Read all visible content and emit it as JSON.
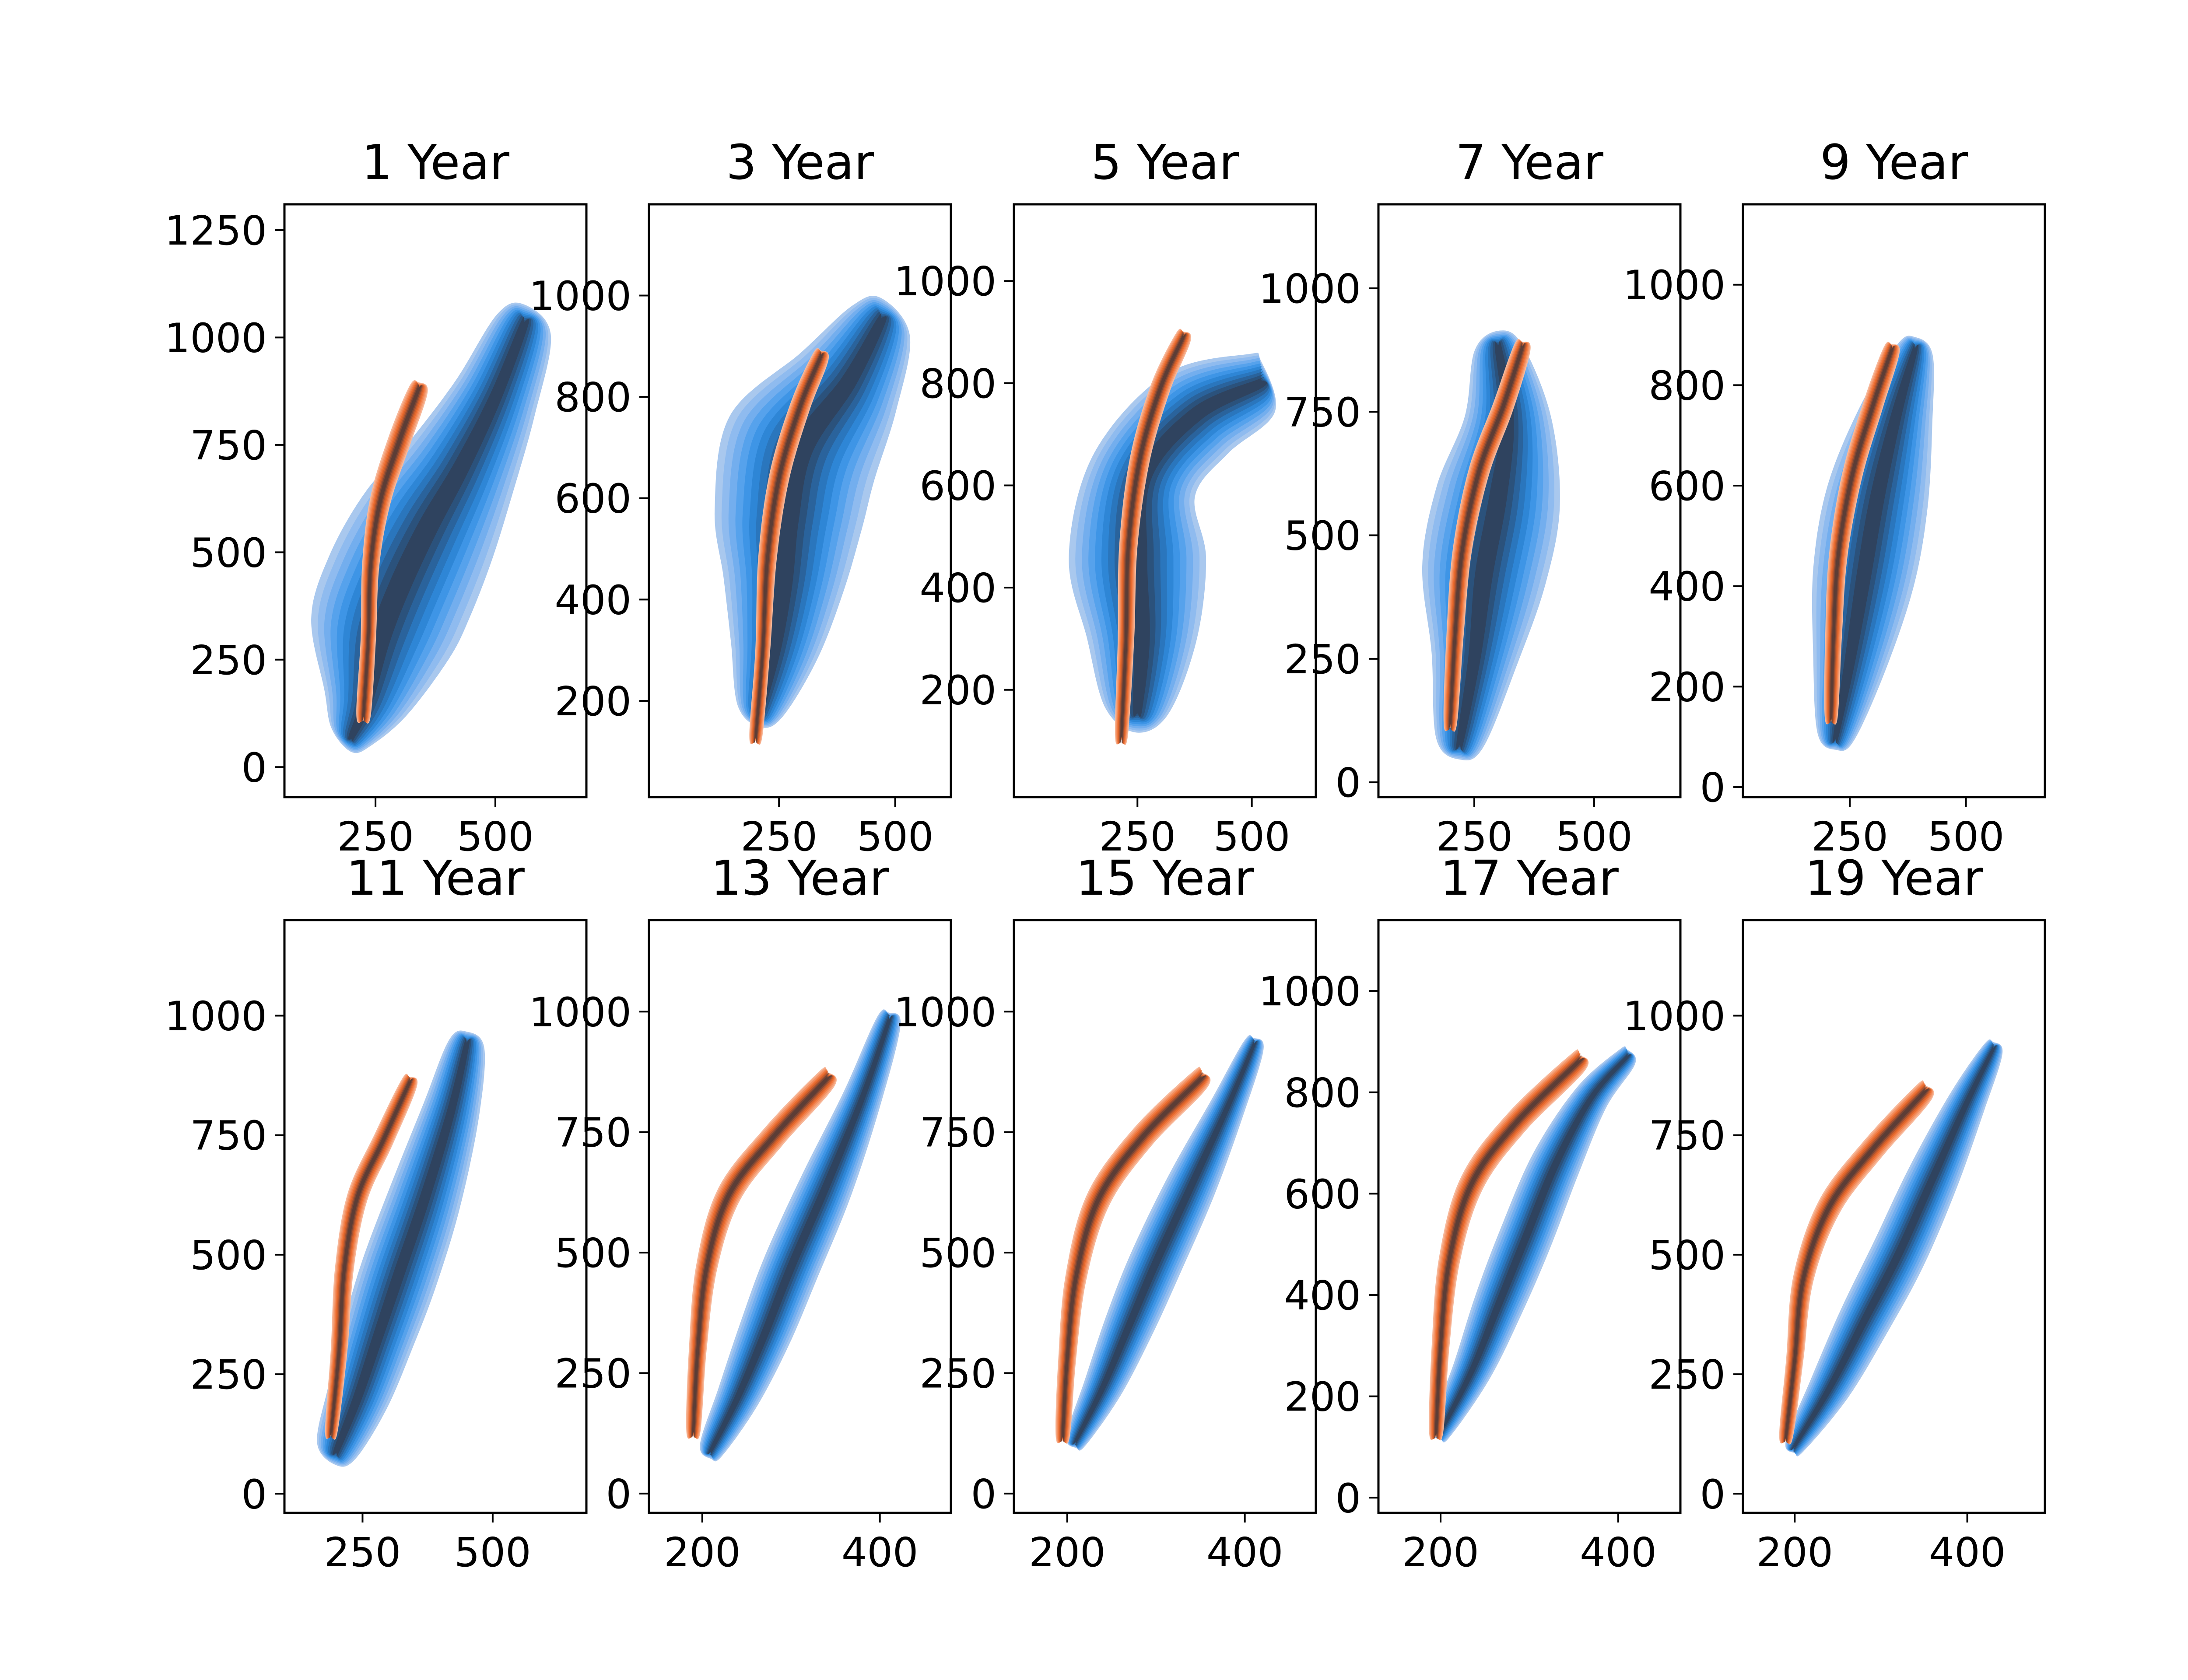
{
  "colors": {
    "blue_levels": [
      "#a9c8ee",
      "#8fbbef",
      "#73aeee",
      "#56a2ec",
      "#3e95e6",
      "#2e86d6",
      "#2a76bd",
      "#2a639c",
      "#2b527c",
      "#2f435f"
    ],
    "orange_levels": [
      "#f7b89a",
      "#f5a47d",
      "#f39060",
      "#f07c45",
      "#e86a2e",
      "#cf5f2a",
      "#a85230",
      "#7a4634",
      "#5c3d36"
    ]
  },
  "chart_data": [
    {
      "type": "kde-contour",
      "title": "1 Year",
      "xticks": [
        250,
        500
      ],
      "yticks": [
        0,
        250,
        500,
        750,
        1000,
        1250
      ],
      "xlim": [
        60,
        690
      ],
      "ylim": [
        -70,
        1310
      ],
      "series": [
        {
          "name": "",
          "color": "blue",
          "centerline": [
            [
              200,
              70
            ],
            [
              230,
              150
            ],
            [
              260,
              300
            ],
            [
              300,
              420
            ],
            [
              360,
              560
            ],
            [
              430,
              700
            ],
            [
              500,
              860
            ],
            [
              560,
              1030
            ]
          ],
          "widths": [
            45,
            90,
            150,
            160,
            150,
            120,
            90,
            60
          ]
        },
        {
          "name": "",
          "color": "orange",
          "centerline": [
            [
              225,
              120
            ],
            [
              235,
              300
            ],
            [
              240,
              470
            ],
            [
              260,
              620
            ],
            [
              300,
              760
            ],
            [
              340,
              880
            ]
          ],
          "widths": [
            15,
            16,
            18,
            22,
            24,
            20
          ]
        }
      ]
    },
    {
      "type": "kde-contour",
      "title": "3 Year",
      "xticks": [
        250,
        500
      ],
      "yticks": [
        200,
        400,
        600,
        800,
        1000
      ],
      "xlim": [
        -30,
        620
      ],
      "ylim": [
        10,
        1180
      ],
      "series": [
        {
          "name": "",
          "color": "blue",
          "centerline": [
            [
              210,
              180
            ],
            [
              240,
              300
            ],
            [
              260,
              430
            ],
            [
              270,
              560
            ],
            [
              300,
              700
            ],
            [
              400,
              830
            ],
            [
              470,
              950
            ]
          ],
          "widths": [
            50,
            95,
            130,
            160,
            170,
            120,
            70
          ]
        },
        {
          "name": "",
          "color": "orange",
          "centerline": [
            [
              200,
              130
            ],
            [
              215,
              300
            ],
            [
              225,
              480
            ],
            [
              250,
              640
            ],
            [
              295,
              780
            ],
            [
              340,
              880
            ]
          ],
          "widths": [
            14,
            16,
            20,
            22,
            22,
            18
          ]
        }
      ]
    },
    {
      "type": "kde-contour",
      "title": "5 Year",
      "xticks": [
        250,
        500
      ],
      "yticks": [
        200,
        400,
        600,
        800,
        1000
      ],
      "xlim": [
        -20,
        640
      ],
      "ylim": [
        -10,
        1150
      ],
      "series": [
        {
          "name": "",
          "color": "blue",
          "centerline": [
            [
              250,
              160
            ],
            [
              260,
              300
            ],
            [
              250,
              460
            ],
            [
              265,
              620
            ],
            [
              380,
              740
            ],
            [
              520,
              800
            ]
          ],
          "widths": [
            70,
            120,
            150,
            120,
            110,
            70
          ]
        },
        {
          "name": "",
          "color": "orange",
          "centerline": [
            [
              215,
              110
            ],
            [
              225,
              300
            ],
            [
              230,
              480
            ],
            [
              255,
              650
            ],
            [
              300,
              790
            ],
            [
              350,
              890
            ]
          ],
          "widths": [
            14,
            18,
            20,
            22,
            22,
            18
          ]
        }
      ]
    },
    {
      "type": "kde-contour",
      "title": "7 Year",
      "xticks": [
        250,
        500
      ],
      "yticks": [
        0,
        250,
        500,
        750,
        1000
      ],
      "xlim": [
        50,
        680
      ],
      "ylim": [
        -30,
        1170
      ],
      "series": [
        {
          "name": "",
          "color": "blue",
          "centerline": [
            [
              220,
              80
            ],
            [
              250,
              250
            ],
            [
              270,
              420
            ],
            [
              300,
              580
            ],
            [
              320,
              740
            ],
            [
              300,
              880
            ]
          ],
          "widths": [
            50,
            90,
            130,
            130,
            90,
            50
          ]
        },
        {
          "name": "",
          "color": "orange",
          "centerline": [
            [
              200,
              120
            ],
            [
              210,
              300
            ],
            [
              225,
              470
            ],
            [
              260,
              630
            ],
            [
              310,
              760
            ],
            [
              350,
              880
            ]
          ],
          "widths": [
            14,
            18,
            20,
            22,
            22,
            18
          ]
        }
      ]
    },
    {
      "type": "kde-contour",
      "title": "9 Year",
      "xticks": [
        250,
        500
      ],
      "yticks": [
        0,
        200,
        400,
        600,
        800,
        1000
      ],
      "xlim": [
        20,
        670
      ],
      "ylim": [
        -20,
        1160
      ],
      "series": [
        {
          "name": "",
          "color": "blue",
          "centerline": [
            [
              220,
              100
            ],
            [
              250,
              250
            ],
            [
              280,
              420
            ],
            [
              310,
              580
            ],
            [
              350,
              740
            ],
            [
              390,
              870
            ]
          ],
          "widths": [
            40,
            80,
            110,
            110,
            80,
            40
          ]
        },
        {
          "name": "",
          "color": "orange",
          "centerline": [
            [
              210,
              140
            ],
            [
              215,
              300
            ],
            [
              225,
              460
            ],
            [
              255,
              620
            ],
            [
              300,
              760
            ],
            [
              340,
              870
            ]
          ],
          "widths": [
            14,
            18,
            20,
            22,
            22,
            18
          ]
        }
      ]
    },
    {
      "type": "kde-contour",
      "title": "11 Year",
      "xticks": [
        250,
        500
      ],
      "yticks": [
        0,
        250,
        500,
        750,
        1000
      ],
      "xlim": [
        100,
        680
      ],
      "ylim": [
        -40,
        1200
      ],
      "series": [
        {
          "name": "",
          "color": "blue",
          "centerline": [
            [
              200,
              90
            ],
            [
              240,
              200
            ],
            [
              280,
              330
            ],
            [
              320,
              460
            ],
            [
              370,
              620
            ],
            [
              420,
              800
            ],
            [
              450,
              940
            ]
          ],
          "widths": [
            40,
            60,
            70,
            75,
            70,
            55,
            35
          ]
        },
        {
          "name": "",
          "color": "orange",
          "centerline": [
            [
              190,
              130
            ],
            [
              205,
              300
            ],
            [
              215,
              470
            ],
            [
              240,
              620
            ],
            [
              290,
              740
            ],
            [
              340,
              860
            ]
          ],
          "widths": [
            12,
            16,
            18,
            20,
            20,
            16
          ]
        }
      ]
    },
    {
      "type": "kde-contour",
      "title": "13 Year",
      "xticks": [
        200,
        400
      ],
      "yticks": [
        0,
        250,
        500,
        750,
        1000
      ],
      "xlim": [
        140,
        480
      ],
      "ylim": [
        -40,
        1190
      ],
      "series": [
        {
          "name": "",
          "color": "blue",
          "centerline": [
            [
              210,
              90
            ],
            [
              240,
              200
            ],
            [
              270,
              330
            ],
            [
              300,
              470
            ],
            [
              340,
              640
            ],
            [
              380,
              820
            ],
            [
              410,
              980
            ]
          ],
          "widths": [
            14,
            24,
            30,
            32,
            30,
            22,
            14
          ]
        },
        {
          "name": "",
          "color": "orange",
          "centerline": [
            [
              190,
              130
            ],
            [
              195,
              300
            ],
            [
              205,
              470
            ],
            [
              230,
              620
            ],
            [
              280,
              740
            ],
            [
              340,
              860
            ]
          ],
          "widths": [
            8,
            10,
            12,
            14,
            14,
            12
          ]
        }
      ]
    },
    {
      "type": "kde-contour",
      "title": "15 Year",
      "xticks": [
        200,
        400
      ],
      "yticks": [
        0,
        250,
        500,
        750,
        1000
      ],
      "xlim": [
        140,
        480
      ],
      "ylim": [
        -40,
        1190
      ],
      "series": [
        {
          "name": "",
          "color": "blue",
          "centerline": [
            [
              210,
              110
            ],
            [
              240,
              220
            ],
            [
              270,
              350
            ],
            [
              300,
              480
            ],
            [
              340,
              640
            ],
            [
              380,
              800
            ],
            [
              410,
              930
            ]
          ],
          "widths": [
            12,
            22,
            28,
            30,
            28,
            20,
            12
          ]
        },
        {
          "name": "",
          "color": "orange",
          "centerline": [
            [
              195,
              120
            ],
            [
              200,
              280
            ],
            [
              210,
              450
            ],
            [
              235,
              610
            ],
            [
              285,
              740
            ],
            [
              350,
              860
            ]
          ],
          "widths": [
            8,
            10,
            12,
            14,
            14,
            12
          ]
        }
      ]
    },
    {
      "type": "kde-contour",
      "title": "17 Year",
      "xticks": [
        200,
        400
      ],
      "yticks": [
        0,
        200,
        400,
        600,
        800,
        1000
      ],
      "xlim": [
        130,
        470
      ],
      "ylim": [
        -30,
        1140
      ],
      "series": [
        {
          "name": "",
          "color": "blue",
          "centerline": [
            [
              200,
              130
            ],
            [
              235,
              250
            ],
            [
              265,
              380
            ],
            [
              295,
              510
            ],
            [
              330,
              660
            ],
            [
              370,
              790
            ],
            [
              410,
              870
            ]
          ],
          "widths": [
            12,
            22,
            28,
            30,
            28,
            20,
            12
          ]
        },
        {
          "name": "",
          "color": "orange",
          "centerline": [
            [
              195,
              130
            ],
            [
              200,
              300
            ],
            [
              210,
              470
            ],
            [
              235,
              620
            ],
            [
              285,
              740
            ],
            [
              355,
              860
            ]
          ],
          "widths": [
            8,
            10,
            12,
            14,
            14,
            12
          ]
        }
      ]
    },
    {
      "type": "kde-contour",
      "title": "19 Year",
      "xticks": [
        200,
        400
      ],
      "yticks": [
        0,
        250,
        500,
        750,
        1000
      ],
      "xlim": [
        140,
        490
      ],
      "ylim": [
        -40,
        1200
      ],
      "series": [
        {
          "name": "",
          "color": "blue",
          "centerline": [
            [
              200,
              100
            ],
            [
              240,
              220
            ],
            [
              280,
              360
            ],
            [
              320,
              500
            ],
            [
              360,
              660
            ],
            [
              400,
              820
            ],
            [
              430,
              930
            ]
          ],
          "widths": [
            12,
            24,
            30,
            32,
            30,
            22,
            12
          ]
        },
        {
          "name": "",
          "color": "orange",
          "centerline": [
            [
              190,
              120
            ],
            [
              200,
              280
            ],
            [
              210,
              450
            ],
            [
              240,
              600
            ],
            [
              290,
              720
            ],
            [
              350,
              840
            ]
          ],
          "widths": [
            8,
            10,
            12,
            14,
            14,
            12
          ]
        }
      ]
    }
  ]
}
